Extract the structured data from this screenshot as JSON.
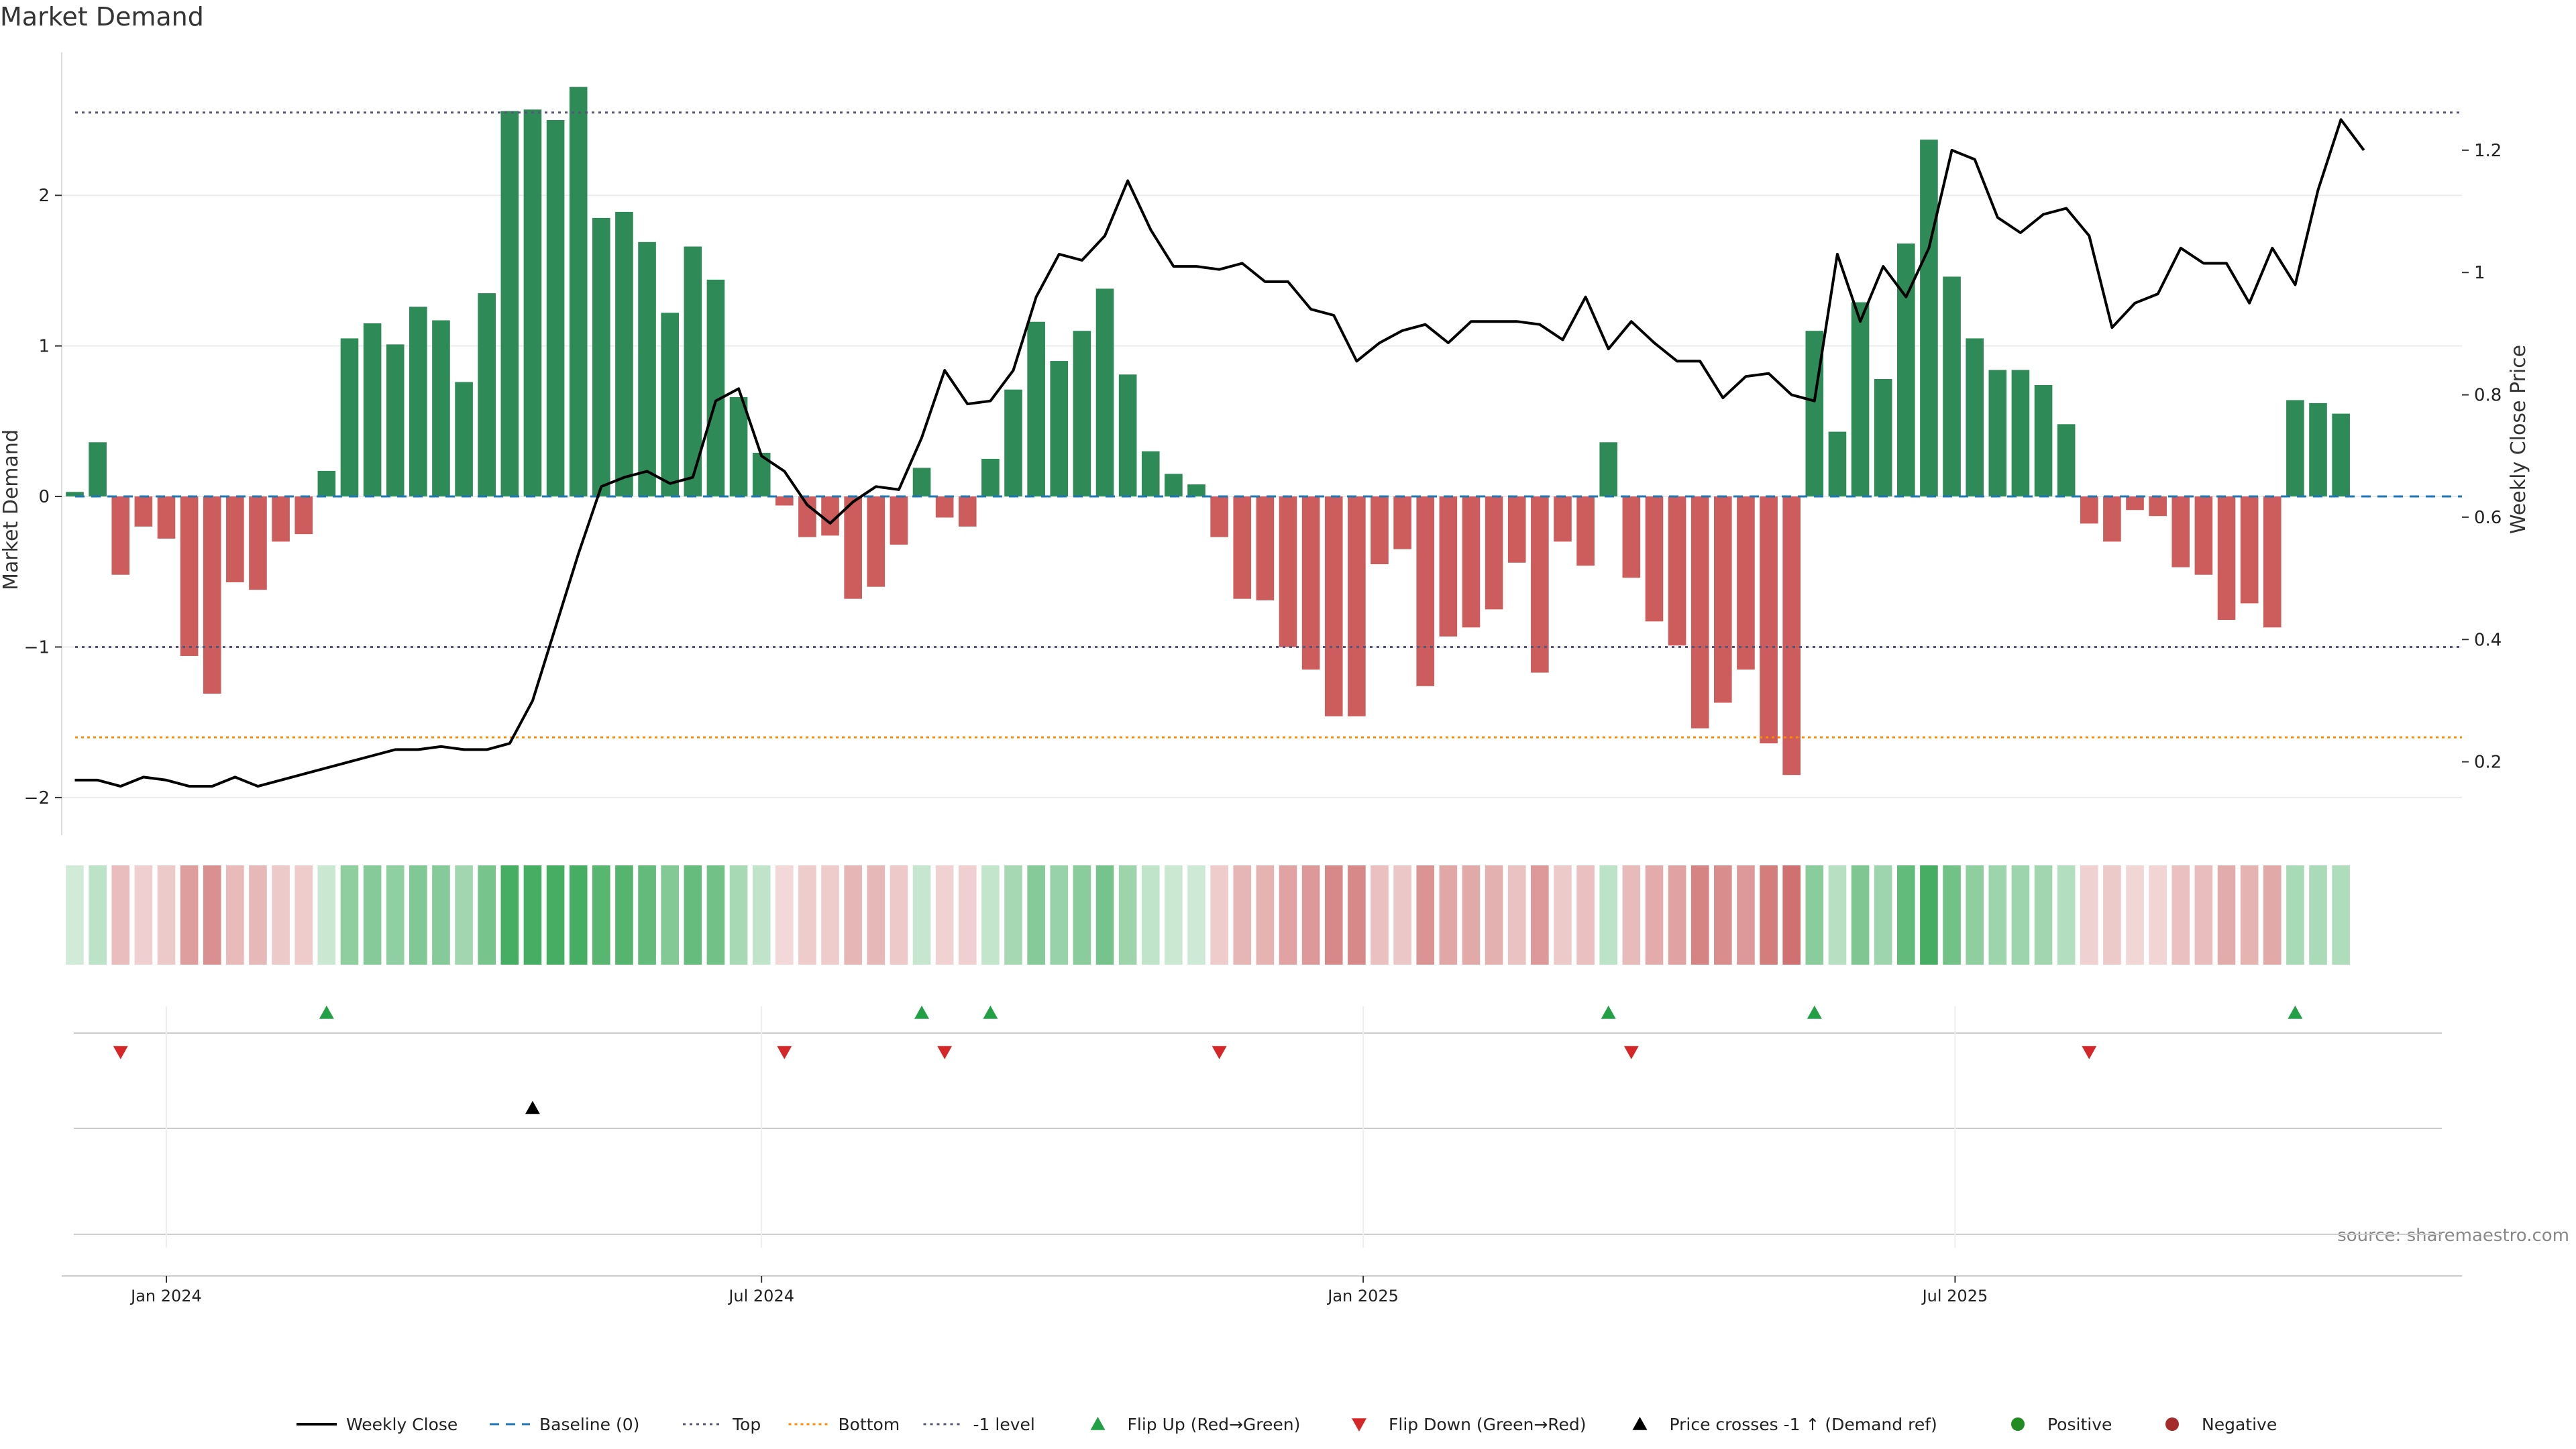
{
  "chart_data": {
    "type": "bar",
    "title": "Market Demand",
    "ylabel": "Market Demand",
    "ylabel_right": "Weekly Close Price",
    "source": "source: sharemaestro.com",
    "x_start": "2023-12-04",
    "x_step_days": 7,
    "xlim": [
      "2023-11-30",
      "2025-12-03"
    ],
    "ylim": [
      -2.25,
      2.95
    ],
    "ylim_right": [
      0.08,
      1.36
    ],
    "x_ticks": [
      {
        "label": "Jan 2024",
        "date": "2024-01-01"
      },
      {
        "label": "Jul 2024",
        "date": "2024-07-01"
      },
      {
        "label": "Jan 2025",
        "date": "2025-01-01"
      },
      {
        "label": "Jul 2025",
        "date": "2025-07-01"
      }
    ],
    "y_ticks": [
      -2,
      -1,
      0,
      1,
      2
    ],
    "y_ticks_right": [
      0.2,
      0.4,
      0.6,
      0.8,
      1.0,
      1.2
    ],
    "y_tick_labels_right": [
      "0.2",
      "0.4",
      "0.6",
      "0.8",
      "1",
      "1.2"
    ],
    "grid": true,
    "levels": {
      "top": 2.55,
      "bottom": -1.6,
      "minus_one": -1.0,
      "baseline": 0
    },
    "colors": {
      "positive": "#2e8b57",
      "negative": "#cd5c5c",
      "price": "#000000",
      "top": "#555577",
      "bottom": "#ff8c00",
      "baseline": "#1f77b4",
      "flip_up": "#22a046",
      "flip_down": "#d62728",
      "pos_dot": "#228b22",
      "neg_dot": "#a52a2a"
    },
    "series": [
      {
        "name": "Market Demand",
        "values": [
          0.03,
          0.36,
          -0.52,
          -0.2,
          -0.28,
          -1.06,
          -1.31,
          -0.57,
          -0.62,
          -0.3,
          -0.25,
          0.17,
          1.05,
          1.15,
          1.01,
          1.26,
          1.17,
          0.76,
          1.35,
          2.56,
          2.57,
          2.5,
          2.72,
          1.85,
          1.89,
          1.69,
          1.22,
          1.66,
          1.44,
          0.66,
          0.29,
          -0.06,
          -0.27,
          -0.26,
          -0.68,
          -0.6,
          -0.32,
          0.19,
          -0.14,
          -0.2,
          0.25,
          0.71,
          1.16,
          0.9,
          1.1,
          1.38,
          0.81,
          0.3,
          0.15,
          0.08,
          -0.27,
          -0.68,
          -0.69,
          -1.0,
          -1.15,
          -1.46,
          -1.46,
          -0.45,
          -0.35,
          -1.26,
          -0.93,
          -0.87,
          -0.75,
          -0.44,
          -1.17,
          -0.3,
          -0.46,
          0.36,
          -0.54,
          -0.83,
          -0.99,
          -1.54,
          -1.37,
          -1.15,
          -1.64,
          -1.85,
          1.1,
          0.43,
          1.29,
          0.78,
          1.68,
          2.37,
          1.46,
          1.05,
          0.84,
          0.84,
          0.74,
          0.48,
          -0.18,
          -0.3,
          -0.09,
          -0.13,
          -0.47,
          -0.52,
          -0.82,
          -0.71,
          -0.87,
          0.64,
          0.62,
          0.55
        ]
      },
      {
        "name": "Weekly Close",
        "values": [
          0.17,
          0.17,
          0.16,
          0.175,
          0.17,
          0.16,
          0.16,
          0.175,
          0.16,
          0.17,
          0.18,
          0.19,
          0.2,
          0.21,
          0.22,
          0.22,
          0.225,
          0.22,
          0.22,
          0.23,
          0.3,
          0.42,
          0.54,
          0.65,
          0.665,
          0.675,
          0.655,
          0.665,
          0.79,
          0.81,
          0.7,
          0.675,
          0.62,
          0.59,
          0.625,
          0.65,
          0.645,
          0.73,
          0.84,
          0.785,
          0.79,
          0.84,
          0.96,
          1.03,
          1.02,
          1.06,
          1.15,
          1.07,
          1.01,
          1.01,
          1.005,
          1.015,
          0.985,
          0.985,
          0.94,
          0.93,
          0.855,
          0.885,
          0.905,
          0.915,
          0.885,
          0.92,
          0.92,
          0.92,
          0.915,
          0.89,
          0.96,
          0.875,
          0.92,
          0.885,
          0.855,
          0.855,
          0.795,
          0.83,
          0.835,
          0.8,
          0.79,
          1.03,
          0.92,
          1.01,
          0.96,
          1.04,
          1.2,
          1.185,
          1.09,
          1.065,
          1.095,
          1.105,
          1.06,
          0.91,
          0.95,
          0.965,
          1.04,
          1.015,
          1.015,
          0.95,
          1.04,
          0.98,
          1.135,
          1.25,
          1.2
        ]
      }
    ],
    "heat_strip": true,
    "flip_up_indices": [
      11,
      37,
      40,
      67,
      76,
      97
    ],
    "flip_down_indices": [
      2,
      31,
      38,
      50,
      68,
      88
    ],
    "price_cross_indices": [
      20
    ],
    "legend_position": "bottom-center",
    "legend": [
      {
        "label": "Weekly Close",
        "kind": "line-solid"
      },
      {
        "label": "Baseline (0)",
        "kind": "line-dash"
      },
      {
        "label": "Top",
        "kind": "line-dot-top"
      },
      {
        "label": "Bottom",
        "kind": "line-dot-bottom"
      },
      {
        "label": "-1 level",
        "kind": "line-dot-minus"
      },
      {
        "label": "Flip Up (Red→Green)",
        "kind": "tri-up-green"
      },
      {
        "label": "Flip Down (Green→Red)",
        "kind": "tri-down-red"
      },
      {
        "label": "Price crosses -1 ↑ (Demand ref)",
        "kind": "tri-up-black"
      },
      {
        "label": "Positive",
        "kind": "dot-green"
      },
      {
        "label": "Negative",
        "kind": "dot-red"
      }
    ]
  }
}
